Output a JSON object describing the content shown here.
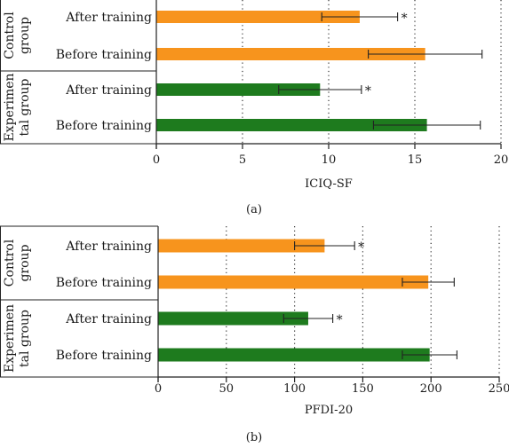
{
  "chart_data": [
    {
      "type": "bar",
      "orientation": "horizontal",
      "panel_label": "(a)",
      "xlabel": "ICIQ-SF",
      "xlim": [
        0,
        20
      ],
      "xticks": [
        0,
        5,
        10,
        15,
        20
      ],
      "grid": "vertical-dotted",
      "groups": [
        {
          "name": "Control group",
          "name_lines": [
            "Control",
            "group"
          ],
          "color": "#F7941D",
          "bars": [
            {
              "label": "After training",
              "value": 11.8,
              "error": 2.2,
              "star": "*"
            },
            {
              "label": "Before training",
              "value": 15.6,
              "error": 3.3,
              "star": ""
            }
          ]
        },
        {
          "name": "Experimental group",
          "name_lines": [
            "Experimen",
            "tal group"
          ],
          "color": "#1E7B1E",
          "bars": [
            {
              "label": "After training",
              "value": 9.5,
              "error": 2.4,
              "star": "*"
            },
            {
              "label": "Before training",
              "value": 15.7,
              "error": 3.1,
              "star": ""
            }
          ]
        }
      ]
    },
    {
      "type": "bar",
      "orientation": "horizontal",
      "panel_label": "(b)",
      "xlabel": "PFDI-20",
      "xlim": [
        0,
        250
      ],
      "xticks": [
        0,
        50,
        100,
        150,
        200,
        250
      ],
      "grid": "vertical-dotted",
      "groups": [
        {
          "name": "Control group",
          "name_lines": [
            "Control",
            "group"
          ],
          "color": "#F7941D",
          "bars": [
            {
              "label": "After training",
              "value": 122,
              "error": 22,
              "star": "*"
            },
            {
              "label": "Before training",
              "value": 198,
              "error": 19,
              "star": ""
            }
          ]
        },
        {
          "name": "Experimental group",
          "name_lines": [
            "Experimen",
            "tal group"
          ],
          "color": "#1E7B1E",
          "bars": [
            {
              "label": "After training",
              "value": 110,
              "error": 18,
              "star": "*"
            },
            {
              "label": "Before training",
              "value": 199,
              "error": 20,
              "star": ""
            }
          ]
        }
      ]
    }
  ]
}
